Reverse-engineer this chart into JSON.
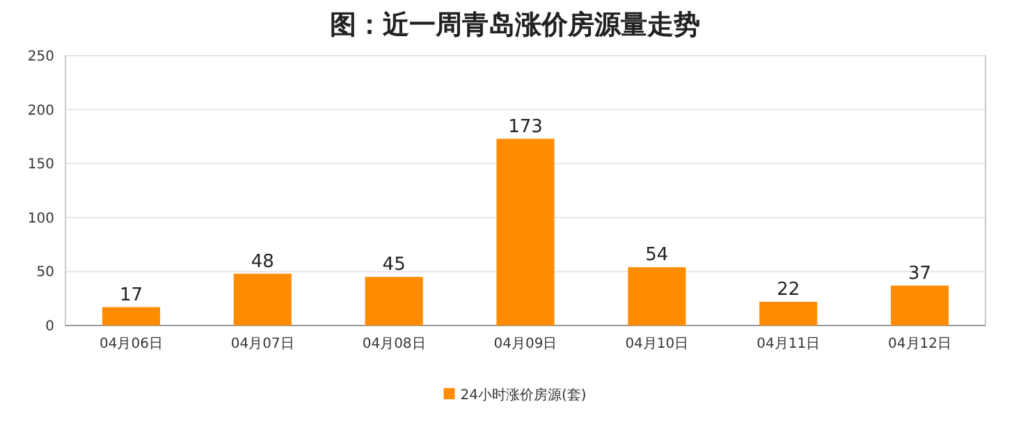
{
  "chart_data": {
    "type": "bar",
    "title": "图：近一周青岛涨价房源量走势",
    "categories": [
      "04月06日",
      "04月07日",
      "04月08日",
      "04月09日",
      "04月10日",
      "04月11日",
      "04月12日"
    ],
    "series": [
      {
        "name": "24小时涨价房源(套)",
        "color": "#ff8c00",
        "values": [
          17,
          48,
          45,
          173,
          54,
          22,
          37
        ]
      }
    ],
    "ylim": [
      0,
      250
    ],
    "yticks": [
      0,
      50,
      100,
      150,
      200,
      250
    ],
    "grid": "y",
    "legend": "bottom",
    "data_labels": true
  }
}
